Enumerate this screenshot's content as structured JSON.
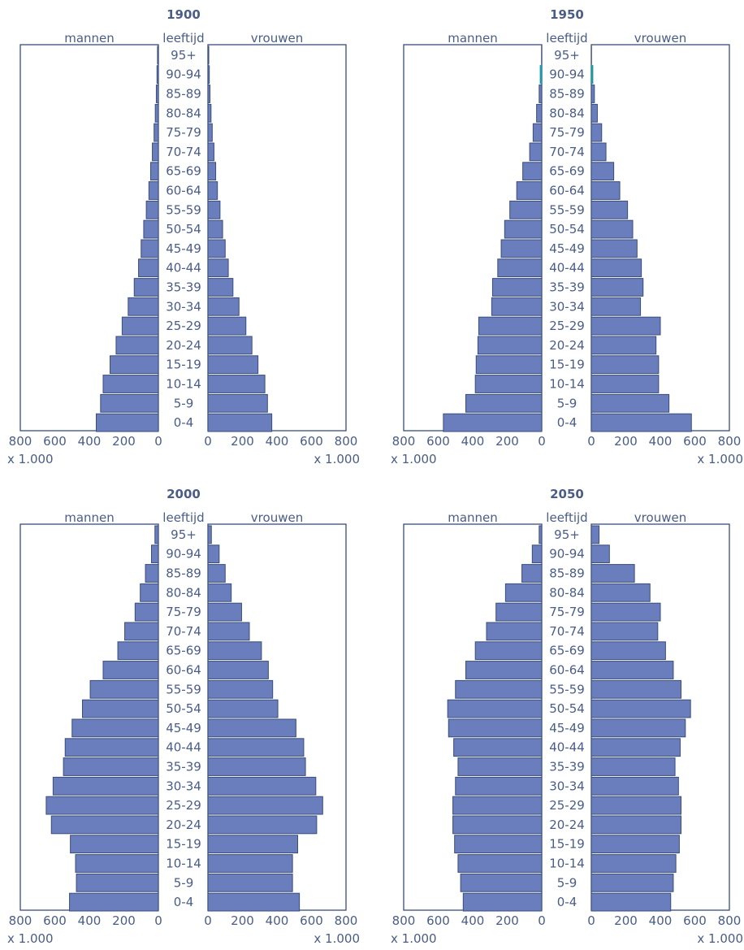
{
  "age_header": "leeftijd",
  "left_header": "mannen",
  "right_header": "vrouwen",
  "unit_label": "x 1.000",
  "axis_ticks": [
    "0",
    "200",
    "400",
    "600",
    "800"
  ],
  "age_groups": [
    "95+",
    "90-94",
    "85-89",
    "80-84",
    "75-79",
    "70-74",
    "65-69",
    "60-64",
    "55-59",
    "50-54",
    "45-49",
    "40-44",
    "35-39",
    "30-34",
    "25-29",
    "20-24",
    "15-19",
    "10-14",
    "5-9",
    "0-4"
  ],
  "colors": {
    "bar": "#6a7dbd",
    "bar_outline": "#3a4d7a",
    "text": "#4a5d86",
    "highlight_outline": "#1b9aa0"
  },
  "chart_data": [
    {
      "type": "bar",
      "title": "1900",
      "categories": [
        "95+",
        "90-94",
        "85-89",
        "80-84",
        "75-79",
        "70-74",
        "65-69",
        "60-64",
        "55-59",
        "50-54",
        "45-49",
        "40-44",
        "35-39",
        "30-34",
        "25-29",
        "20-24",
        "15-19",
        "10-14",
        "5-9",
        "0-4"
      ],
      "series": [
        {
          "name": "mannen",
          "values": [
            5,
            8,
            12,
            18,
            25,
            35,
            45,
            55,
            70,
            85,
            100,
            115,
            140,
            175,
            210,
            245,
            280,
            320,
            335,
            360
          ]
        },
        {
          "name": "vrouwen",
          "values": [
            5,
            8,
            12,
            18,
            25,
            35,
            45,
            55,
            70,
            85,
            100,
            118,
            145,
            180,
            220,
            255,
            290,
            330,
            345,
            370
          ]
        }
      ],
      "xlim": [
        0,
        800
      ]
    },
    {
      "type": "bar",
      "title": "1950",
      "categories": [
        "95+",
        "90-94",
        "85-89",
        "80-84",
        "75-79",
        "70-74",
        "65-69",
        "60-64",
        "55-59",
        "50-54",
        "45-49",
        "40-44",
        "35-39",
        "30-34",
        "25-29",
        "20-24",
        "15-19",
        "10-14",
        "5-9",
        "0-4"
      ],
      "series": [
        {
          "name": "mannen",
          "values": [
            1,
            8,
            15,
            30,
            50,
            70,
            110,
            145,
            185,
            215,
            235,
            255,
            285,
            290,
            365,
            370,
            380,
            385,
            440,
            570
          ]
        },
        {
          "name": "vrouwen",
          "values": [
            1,
            8,
            18,
            35,
            60,
            85,
            130,
            165,
            210,
            240,
            265,
            290,
            300,
            285,
            400,
            375,
            390,
            390,
            450,
            580
          ]
        }
      ],
      "xlim": [
        0,
        800
      ]
    },
    {
      "type": "bar",
      "title": "2000",
      "categories": [
        "95+",
        "90-94",
        "85-89",
        "80-84",
        "75-79",
        "70-74",
        "65-69",
        "60-64",
        "55-59",
        "50-54",
        "45-49",
        "40-44",
        "35-39",
        "30-34",
        "25-29",
        "20-24",
        "15-19",
        "10-14",
        "5-9",
        "0-4"
      ],
      "series": [
        {
          "name": "mannen",
          "values": [
            20,
            40,
            75,
            105,
            135,
            195,
            235,
            320,
            395,
            440,
            500,
            540,
            550,
            610,
            650,
            620,
            510,
            480,
            475,
            515
          ]
        },
        {
          "name": "vrouwen",
          "values": [
            20,
            65,
            100,
            135,
            195,
            240,
            310,
            350,
            375,
            405,
            510,
            555,
            565,
            625,
            665,
            630,
            520,
            490,
            490,
            530
          ]
        }
      ],
      "xlim": [
        0,
        800
      ]
    },
    {
      "type": "bar",
      "title": "2050",
      "categories": [
        "95+",
        "90-94",
        "85-89",
        "80-84",
        "75-79",
        "70-74",
        "65-69",
        "60-64",
        "55-59",
        "50-54",
        "45-49",
        "40-44",
        "35-39",
        "30-34",
        "25-29",
        "20-24",
        "15-19",
        "10-14",
        "5-9",
        "0-4"
      ],
      "series": [
        {
          "name": "mannen",
          "values": [
            15,
            55,
            115,
            210,
            265,
            320,
            385,
            440,
            500,
            545,
            540,
            510,
            485,
            500,
            515,
            515,
            505,
            485,
            470,
            455
          ]
        },
        {
          "name": "vrouwen",
          "values": [
            45,
            105,
            250,
            340,
            400,
            385,
            430,
            475,
            520,
            575,
            545,
            515,
            485,
            505,
            520,
            520,
            510,
            490,
            475,
            460
          ]
        }
      ],
      "xlim": [
        0,
        800
      ]
    }
  ]
}
